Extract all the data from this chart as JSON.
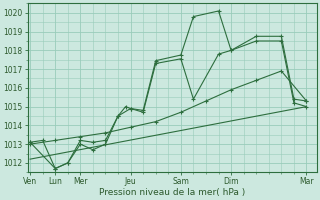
{
  "bg_color": "#cce8df",
  "grid_color": "#99ccbb",
  "line_color": "#2d6e3e",
  "axis_color": "#2d6e3e",
  "text_color": "#2d5a2d",
  "xlabel": "Pression niveau de la mer( hPa )",
  "ylim": [
    1011.5,
    1020.5
  ],
  "yticks": [
    1012,
    1013,
    1014,
    1015,
    1016,
    1017,
    1018,
    1019,
    1020
  ],
  "major_xtick_positions": [
    0,
    1,
    2,
    4,
    6,
    8,
    11
  ],
  "major_xtick_labels": [
    "Ven",
    "Lun",
    "Mer",
    "Jeu",
    "Sam",
    "Dim",
    "Mar"
  ],
  "xlim": [
    -0.1,
    11.4
  ],
  "series1_x": [
    0,
    1,
    1.5,
    2,
    2.5,
    3,
    3.5,
    3.8,
    4,
    4.5,
    5,
    6,
    6.5,
    7.5,
    8,
    9,
    10,
    10.5,
    11
  ],
  "series1_y": [
    1013.1,
    1011.7,
    1012.0,
    1013.2,
    1013.1,
    1013.2,
    1014.5,
    1015.0,
    1014.9,
    1014.8,
    1017.45,
    1017.75,
    1019.8,
    1020.1,
    1018.0,
    1018.75,
    1018.75,
    1015.4,
    1015.3
  ],
  "series2_x": [
    0,
    0.5,
    1,
    1.5,
    2,
    2.5,
    3,
    3.5,
    4,
    4.5,
    5,
    6,
    6.5,
    7.5,
    8,
    9,
    10,
    10.5,
    11
  ],
  "series2_y": [
    1013.1,
    1013.2,
    1011.7,
    1012.0,
    1013.0,
    1012.7,
    1013.0,
    1014.5,
    1014.9,
    1014.7,
    1017.3,
    1017.55,
    1015.4,
    1017.8,
    1018.0,
    1018.5,
    1018.5,
    1015.2,
    1015.0
  ],
  "series3_x": [
    0,
    1,
    2,
    3,
    4,
    5,
    6,
    7,
    8,
    9,
    10,
    11
  ],
  "series3_y": [
    1013.0,
    1013.2,
    1013.4,
    1013.6,
    1013.9,
    1014.2,
    1014.7,
    1015.3,
    1015.9,
    1016.4,
    1016.9,
    1015.3
  ],
  "series4_x": [
    0,
    11
  ],
  "series4_y": [
    1012.2,
    1015.0
  ]
}
